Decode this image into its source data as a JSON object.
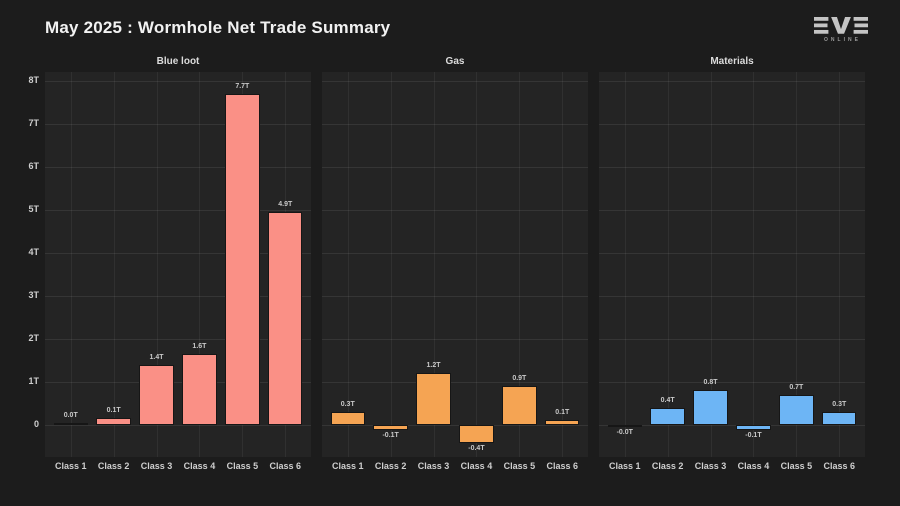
{
  "header": {
    "title": "May 2025 : Wormhole Net Trade Summary",
    "logo": {
      "brand": "EVE",
      "online": "ONLINE"
    }
  },
  "colors": {
    "figure_background": "#1c1c1c",
    "axes_background": "#242424",
    "grid": "rgba(255,255,255,0.08)",
    "text": "#cfcfcf",
    "title_text": "#f2f2f2",
    "bar_edge": "#161616",
    "blue_loot_bars": "#fa9086",
    "gas_bars": "#f5a453",
    "materials_bars": "#6db5f5",
    "logo": "#c4c4c4"
  },
  "chart_data": [
    {
      "type": "bar",
      "title": "Blue loot",
      "categories": [
        "Class 1",
        "Class 2",
        "Class 3",
        "Class 4",
        "Class 5",
        "Class 6"
      ],
      "values": [
        0.05,
        0.15,
        1.4,
        1.65,
        7.7,
        4.95
      ],
      "bar_labels": [
        "0.0T",
        "0.1T",
        "1.4T",
        "1.6T",
        "7.7T",
        "4.9T"
      ],
      "color": "#fa9086",
      "xlabel": "",
      "ylabel": "",
      "ylim": [
        -0.75,
        8.2
      ],
      "yticks": [
        0,
        1,
        2,
        3,
        4,
        5,
        6,
        7,
        8
      ],
      "ytick_labels": [
        "0",
        "1T",
        "2T",
        "3T",
        "4T",
        "5T",
        "6T",
        "7T",
        "8T"
      ],
      "show_ytick_labels": true,
      "grid": true,
      "legend": false
    },
    {
      "type": "bar",
      "title": "Gas",
      "categories": [
        "Class 1",
        "Class 2",
        "Class 3",
        "Class 4",
        "Class 5",
        "Class 6"
      ],
      "values": [
        0.3,
        -0.13,
        1.2,
        -0.42,
        0.9,
        0.1
      ],
      "bar_labels": [
        "0.3T",
        "-0.1T",
        "1.2T",
        "-0.4T",
        "0.9T",
        "0.1T"
      ],
      "color": "#f5a453",
      "xlabel": "",
      "ylabel": "",
      "ylim": [
        -0.75,
        8.2
      ],
      "yticks": [
        0,
        1,
        2,
        3,
        4,
        5,
        6,
        7,
        8
      ],
      "ytick_labels": [
        "0",
        "1T",
        "2T",
        "3T",
        "4T",
        "5T",
        "6T",
        "7T",
        "8T"
      ],
      "show_ytick_labels": false,
      "grid": true,
      "legend": false
    },
    {
      "type": "bar",
      "title": "Materials",
      "categories": [
        "Class 1",
        "Class 2",
        "Class 3",
        "Class 4",
        "Class 5",
        "Class 6"
      ],
      "values": [
        -0.04,
        0.4,
        0.8,
        -0.12,
        0.7,
        0.3
      ],
      "bar_labels": [
        "-0.0T",
        "0.4T",
        "0.8T",
        "-0.1T",
        "0.7T",
        "0.3T"
      ],
      "color": "#6db5f5",
      "xlabel": "",
      "ylabel": "",
      "ylim": [
        -0.75,
        8.2
      ],
      "yticks": [
        0,
        1,
        2,
        3,
        4,
        5,
        6,
        7,
        8
      ],
      "ytick_labels": [
        "0",
        "1T",
        "2T",
        "3T",
        "4T",
        "5T",
        "6T",
        "7T",
        "8T"
      ],
      "show_ytick_labels": false,
      "grid": true,
      "legend": false
    }
  ]
}
